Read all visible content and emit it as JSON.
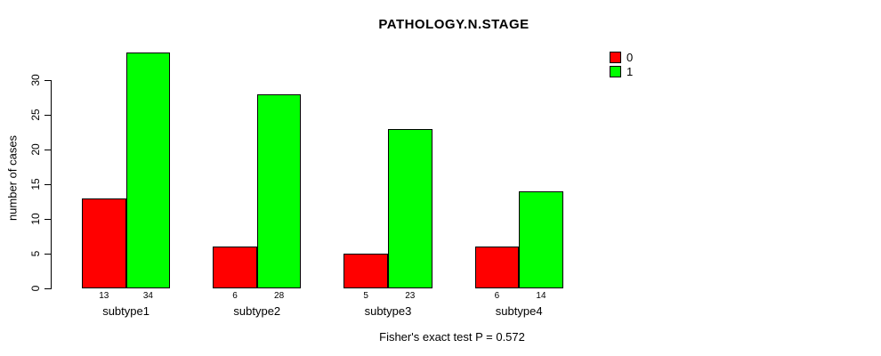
{
  "title": "PATHOLOGY.N.STAGE",
  "caption": "Fisher's exact test P = 0.572",
  "chart_data": {
    "type": "bar",
    "categories": [
      "subtype1",
      "subtype2",
      "subtype3",
      "subtype4"
    ],
    "series": [
      {
        "name": "0",
        "color": "#ff0000",
        "values": [
          13,
          6,
          5,
          6
        ]
      },
      {
        "name": "1",
        "color": "#00ff00",
        "values": [
          34,
          28,
          23,
          14
        ]
      }
    ],
    "title": "PATHOLOGY.N.STAGE",
    "xlabel": "",
    "ylabel": "number of cases",
    "ylim": [
      0,
      30
    ],
    "yticks": [
      0,
      5,
      10,
      15,
      20,
      25,
      30
    ],
    "bar_value_labels": true,
    "grid": false,
    "legend_position": "top-right",
    "annotation": "Fisher's exact test P = 0.572"
  }
}
